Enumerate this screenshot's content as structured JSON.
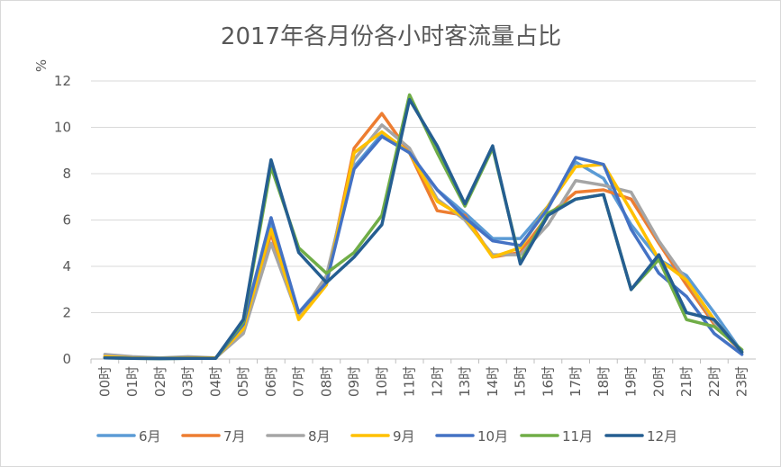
{
  "chart_data": {
    "type": "line",
    "title": "2017年各月份各小时客流量占比",
    "ylabel": "%",
    "xlabel": "",
    "ylim": [
      0,
      12
    ],
    "yticks": [
      0,
      2,
      4,
      6,
      8,
      10,
      12
    ],
    "grid": true,
    "legend_position": "bottom",
    "categories": [
      "00时",
      "01时",
      "02时",
      "03时",
      "04时",
      "05时",
      "06时",
      "07时",
      "08时",
      "09时",
      "10时",
      "11时",
      "12时",
      "13时",
      "14时",
      "15时",
      "16时",
      "17时",
      "18时",
      "19时",
      "20时",
      "21时",
      "22时",
      "23时"
    ],
    "series": [
      {
        "name": "6月",
        "color": "#5B9BD5",
        "values": [
          0.1,
          0.05,
          0.03,
          0.05,
          0.05,
          1.3,
          5.9,
          2.0,
          3.4,
          8.3,
          9.7,
          8.9,
          7.3,
          6.3,
          5.2,
          5.2,
          6.6,
          8.5,
          7.8,
          5.8,
          4.3,
          3.6,
          2.0,
          0.3
        ]
      },
      {
        "name": "7月",
        "color": "#ED7D31",
        "values": [
          0.1,
          0.05,
          0.03,
          0.05,
          0.05,
          1.4,
          5.4,
          1.8,
          3.3,
          9.1,
          10.6,
          8.9,
          6.4,
          6.2,
          4.4,
          4.6,
          6.2,
          7.2,
          7.3,
          6.9,
          5.0,
          3.2,
          1.5,
          0.3
        ]
      },
      {
        "name": "8月",
        "color": "#A5A5A5",
        "values": [
          0.2,
          0.1,
          0.05,
          0.1,
          0.05,
          1.1,
          5.0,
          1.8,
          3.6,
          8.6,
          10.1,
          9.1,
          6.9,
          6.0,
          4.5,
          4.5,
          5.8,
          7.7,
          7.5,
          7.2,
          5.1,
          3.4,
          1.6,
          0.3
        ]
      },
      {
        "name": "9月",
        "color": "#FFC000",
        "values": [
          0.1,
          0.05,
          0.03,
          0.05,
          0.05,
          1.3,
          5.6,
          1.7,
          3.2,
          8.9,
          9.8,
          8.9,
          6.8,
          6.1,
          4.4,
          4.8,
          6.6,
          8.3,
          8.4,
          6.4,
          4.3,
          3.4,
          1.7,
          0.3
        ]
      },
      {
        "name": "10月",
        "color": "#4472C4",
        "values": [
          0.05,
          0.03,
          0.02,
          0.03,
          0.03,
          1.5,
          6.1,
          2.0,
          3.3,
          8.2,
          9.6,
          8.9,
          7.3,
          6.1,
          5.1,
          4.9,
          6.5,
          8.7,
          8.4,
          5.6,
          3.7,
          2.7,
          1.1,
          0.2
        ]
      },
      {
        "name": "11月",
        "color": "#70AD47",
        "values": [
          0.05,
          0.03,
          0.02,
          0.03,
          0.03,
          1.6,
          8.3,
          4.8,
          3.7,
          4.6,
          6.2,
          11.4,
          8.9,
          6.6,
          9.1,
          4.2,
          6.3,
          6.9,
          7.1,
          3.0,
          4.3,
          1.7,
          1.4,
          0.4
        ]
      },
      {
        "name": "12月",
        "color": "#255E91",
        "values": [
          0.05,
          0.03,
          0.02,
          0.03,
          0.03,
          1.7,
          8.6,
          4.6,
          3.3,
          4.4,
          5.8,
          11.2,
          9.2,
          6.7,
          9.2,
          4.1,
          6.2,
          6.9,
          7.1,
          3.0,
          4.5,
          2.0,
          1.7,
          0.3
        ]
      }
    ]
  }
}
